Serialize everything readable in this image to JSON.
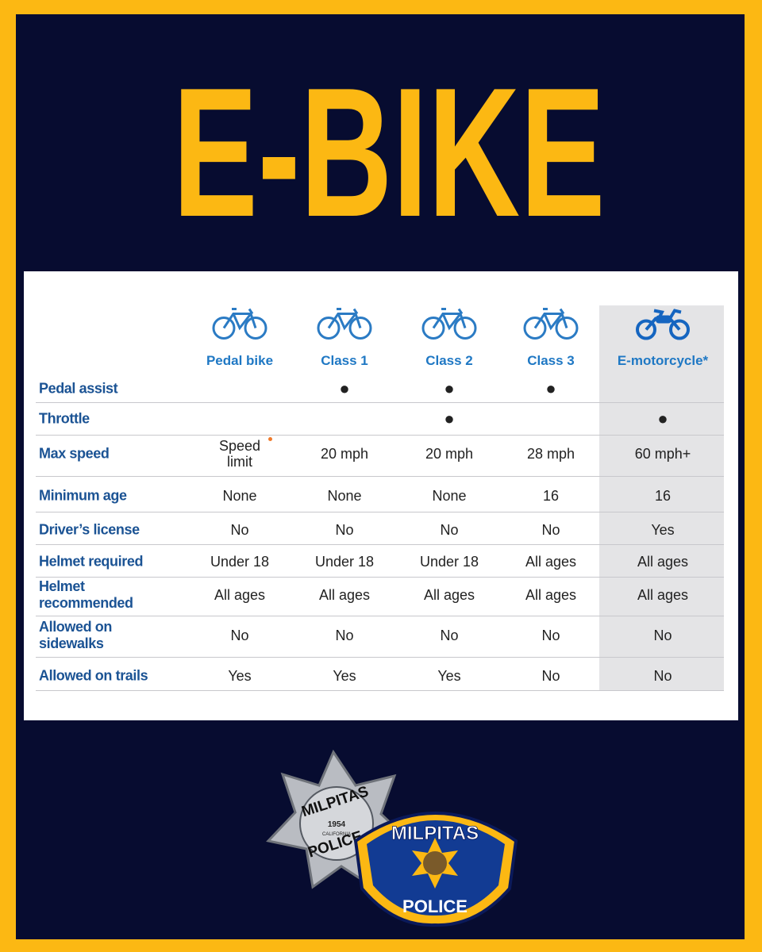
{
  "title": "E-BIKE",
  "table": {
    "columns": [
      "Pedal bike",
      "Class 1",
      "Class 2",
      "Class 3",
      "E-motorcycle*"
    ],
    "rows": [
      {
        "label": "Pedal assist",
        "cells": [
          null,
          "●",
          "●",
          "●",
          null
        ]
      },
      {
        "label": "Throttle",
        "cells": [
          null,
          null,
          "●",
          null,
          "●"
        ]
      },
      {
        "label": "Max speed",
        "cells": [
          "Speed limit",
          "20 mph",
          "20 mph",
          "28 mph",
          "60 mph+"
        ]
      },
      {
        "label": "Minimum age",
        "cells": [
          "None",
          "None",
          "None",
          "16",
          "16"
        ]
      },
      {
        "label": "Driver’s license",
        "cells": [
          "No",
          "No",
          "No",
          "No",
          "Yes"
        ]
      },
      {
        "label": "Helmet required",
        "cells": [
          "Under 18",
          "Under 18",
          "Under 18",
          "All ages",
          "All ages"
        ]
      },
      {
        "label": "Helmet recommended",
        "cells": [
          "All ages",
          "All ages",
          "All ages",
          "All ages",
          "All ages"
        ]
      },
      {
        "label": "Allowed on sidewalks",
        "cells": [
          "No",
          "No",
          "No",
          "No",
          "No"
        ]
      },
      {
        "label": "Allowed on trails",
        "cells": [
          "Yes",
          "Yes",
          "Yes",
          "No",
          "No"
        ]
      }
    ]
  },
  "badge": {
    "top": "MILPITAS",
    "year": "1954",
    "state": "CALIFORNIA",
    "bottom": "POLICE"
  },
  "patch": {
    "top": "MILPITAS",
    "bottom": "POLICE"
  }
}
